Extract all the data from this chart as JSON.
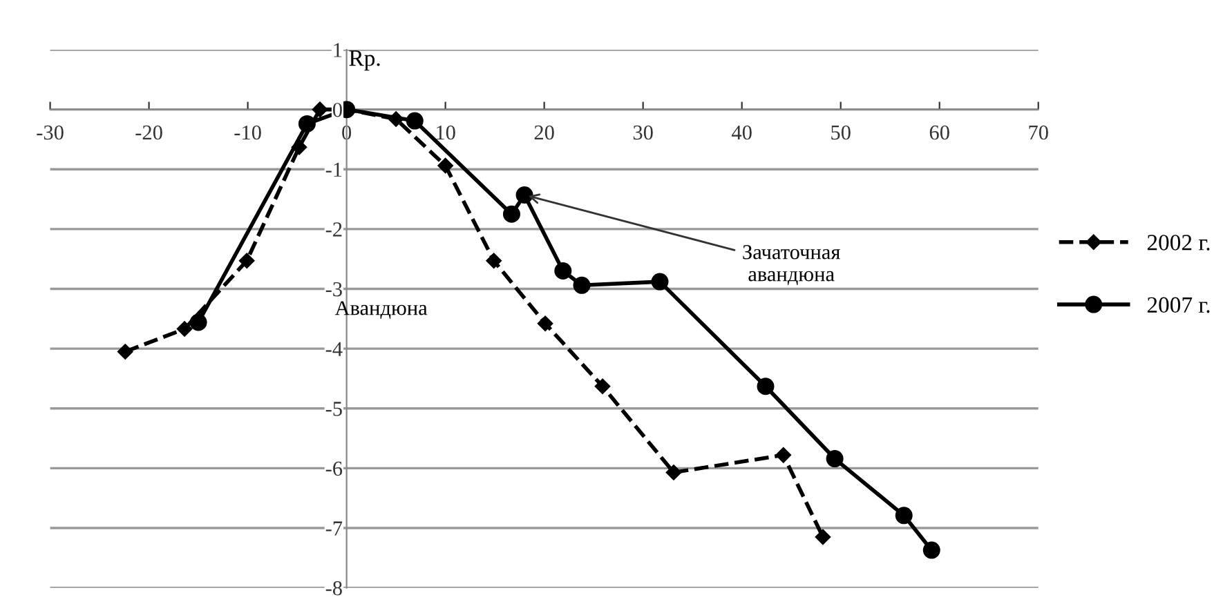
{
  "chart_data": {
    "type": "line",
    "ylabel": "Rp.",
    "xlim": [
      -30,
      70
    ],
    "xticks": [
      -30,
      -20,
      -10,
      0,
      10,
      20,
      30,
      40,
      50,
      60,
      70
    ],
    "ylim": [
      -8,
      1
    ],
    "yticks": [
      -8,
      -7,
      -6,
      -5,
      -4,
      -3,
      -2,
      -1,
      0,
      1
    ],
    "grid": "y",
    "legend": "right",
    "series": [
      {
        "name": "2002 г.",
        "color": "#000000",
        "marker": "diamond",
        "line_style": "dashed",
        "x": [
          -22.4,
          -16.4,
          -10.1,
          -4.8,
          -2.7,
          0,
          5,
          10,
          14.9,
          20.1,
          25.9,
          33.1,
          44.2,
          48.2
        ],
        "values": [
          -4.05,
          -3.67,
          -2.53,
          -0.63,
          0,
          0,
          -0.16,
          -0.94,
          -2.53,
          -3.58,
          -4.63,
          -6.07,
          -5.78,
          -7.15
        ]
      },
      {
        "name": "2007 г.",
        "color": "#000000",
        "marker": "circle",
        "line_style": "solid",
        "x": [
          -15.0,
          -4.0,
          0,
          6.9,
          16.7,
          18.0,
          21.9,
          23.8,
          31.7,
          42.4,
          49.4,
          56.4,
          59.2
        ],
        "values": [
          -3.56,
          -0.24,
          0,
          -0.19,
          -1.75,
          -1.43,
          -2.7,
          -2.94,
          -2.88,
          -4.63,
          -5.84,
          -6.79,
          -7.37
        ]
      }
    ],
    "annotations": [
      "Авандюна",
      {
        "text": "Зачаточная\nавандюна",
        "x": 18.0,
        "y": -1.43
      }
    ]
  }
}
